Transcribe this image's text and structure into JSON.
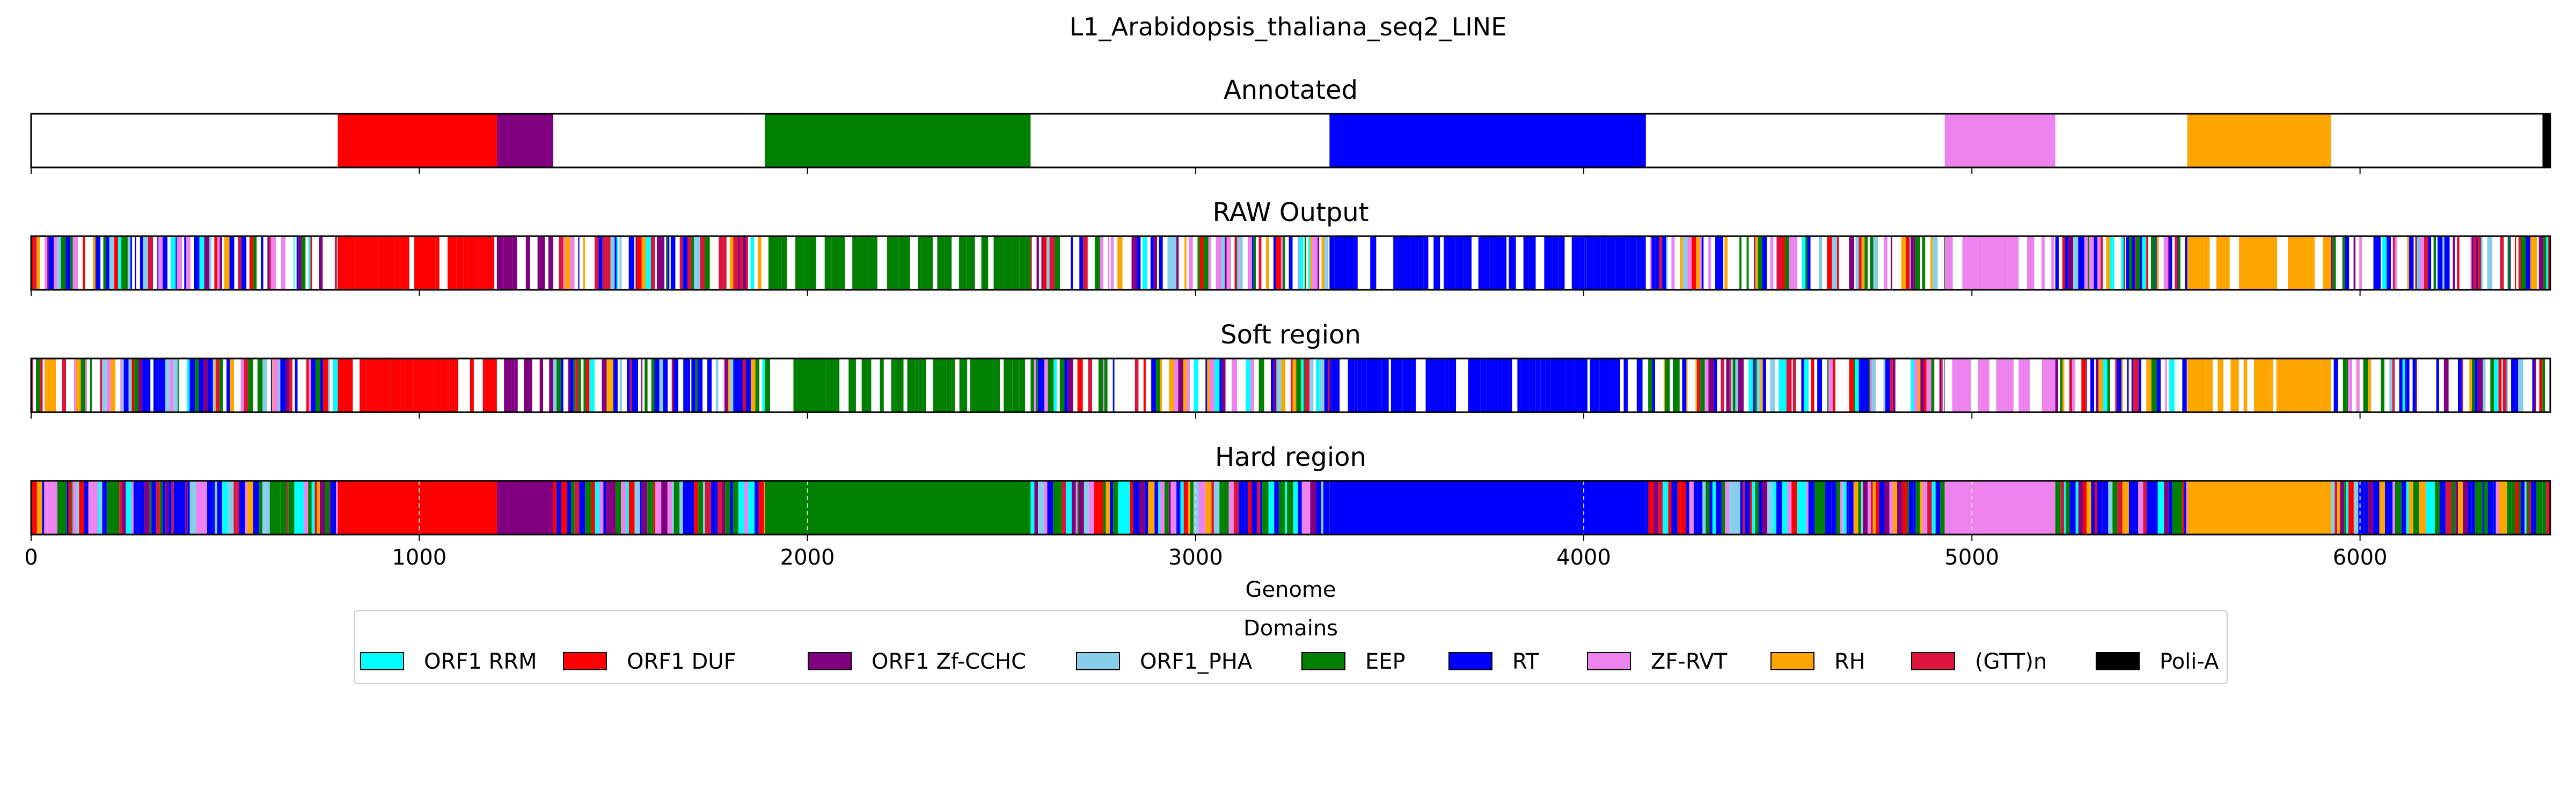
{
  "chart_data": {
    "type": "bar",
    "title": "L1_Arabidopsis_thaliana_seq2_LINE",
    "xlabel": "Genome",
    "ylabel": "",
    "xlim": [
      0,
      6490
    ],
    "xticks": [
      0,
      1000,
      2000,
      3000,
      4000,
      5000,
      6000
    ],
    "xtick_labels": [
      "0",
      "1000",
      "2000",
      "3000",
      "4000",
      "5000",
      "6000"
    ],
    "grid": "x-dashed",
    "legend_title": "Domains",
    "legend_position": "bottom-center",
    "domains": [
      {
        "name": "ORF1 RRM",
        "color": "#00ffff"
      },
      {
        "name": "ORF1 DUF",
        "color": "#ff0000"
      },
      {
        "name": "ORF1 Zf-CCHC",
        "color": "#800080"
      },
      {
        "name": "ORF1_PHA",
        "color": "#87ceeb"
      },
      {
        "name": "EEP",
        "color": "#008000"
      },
      {
        "name": "RT",
        "color": "#0000ff"
      },
      {
        "name": "ZF-RVT",
        "color": "#ee82ee"
      },
      {
        "name": "RH",
        "color": "#ffa500"
      },
      {
        "name": "(GTT)n",
        "color": "#dc143c"
      },
      {
        "name": "Poli-A",
        "color": "#000000"
      }
    ],
    "tracks": [
      {
        "name": "Annotated",
        "regions": [
          {
            "domain": "ORF1 DUF",
            "start": 790,
            "end": 1200
          },
          {
            "domain": "ORF1 Zf-CCHC",
            "start": 1200,
            "end": 1345
          },
          {
            "domain": "EEP",
            "start": 1890,
            "end": 2575
          },
          {
            "domain": "RT",
            "start": 3345,
            "end": 4160
          },
          {
            "domain": "ZF-RVT",
            "start": 4930,
            "end": 5215
          },
          {
            "domain": "RH",
            "start": 5555,
            "end": 5925
          },
          {
            "domain": "Poli-A",
            "start": 6470,
            "end": 6490
          }
        ]
      },
      {
        "name": "RAW Output",
        "regions": [
          {
            "domain": "mixed",
            "start": 0,
            "end": 790
          },
          {
            "domain": "ORF1 DUF",
            "start": 790,
            "end": 1200
          },
          {
            "domain": "ORF1 Zf-CCHC",
            "start": 1200,
            "end": 1345
          },
          {
            "domain": "mixed",
            "start": 1345,
            "end": 1890
          },
          {
            "domain": "EEP",
            "start": 1890,
            "end": 2575
          },
          {
            "domain": "mixed",
            "start": 2575,
            "end": 3345
          },
          {
            "domain": "RT",
            "start": 3345,
            "end": 4160
          },
          {
            "domain": "mixed",
            "start": 4160,
            "end": 4930
          },
          {
            "domain": "ZF-RVT",
            "start": 4930,
            "end": 5215
          },
          {
            "domain": "mixed",
            "start": 5215,
            "end": 5555
          },
          {
            "domain": "RH",
            "start": 5555,
            "end": 5925
          },
          {
            "domain": "mixed",
            "start": 5925,
            "end": 6490
          }
        ]
      },
      {
        "name": "Soft region",
        "regions": [
          {
            "domain": "mixed",
            "start": 0,
            "end": 790
          },
          {
            "domain": "ORF1 DUF",
            "start": 790,
            "end": 1200
          },
          {
            "domain": "ORF1 Zf-CCHC",
            "start": 1200,
            "end": 1345
          },
          {
            "domain": "mixed",
            "start": 1345,
            "end": 1890
          },
          {
            "domain": "EEP",
            "start": 1890,
            "end": 2575
          },
          {
            "domain": "mixed",
            "start": 2575,
            "end": 3345
          },
          {
            "domain": "RT",
            "start": 3345,
            "end": 4160
          },
          {
            "domain": "mixed",
            "start": 4160,
            "end": 4930
          },
          {
            "domain": "ZF-RVT",
            "start": 4930,
            "end": 5215
          },
          {
            "domain": "mixed",
            "start": 5215,
            "end": 5555
          },
          {
            "domain": "RH",
            "start": 5555,
            "end": 5925
          },
          {
            "domain": "mixed",
            "start": 5925,
            "end": 6490
          }
        ]
      },
      {
        "name": "Hard region",
        "regions": [
          {
            "domain": "mixed",
            "start": 0,
            "end": 790
          },
          {
            "domain": "ORF1 DUF",
            "start": 790,
            "end": 1200
          },
          {
            "domain": "ORF1 Zf-CCHC",
            "start": 1200,
            "end": 1345
          },
          {
            "domain": "mixed",
            "start": 1345,
            "end": 1890
          },
          {
            "domain": "EEP",
            "start": 1890,
            "end": 2575
          },
          {
            "domain": "mixed",
            "start": 2575,
            "end": 3345
          },
          {
            "domain": "RT",
            "start": 3345,
            "end": 4160
          },
          {
            "domain": "mixed",
            "start": 4160,
            "end": 4930
          },
          {
            "domain": "ZF-RVT",
            "start": 4930,
            "end": 5215
          },
          {
            "domain": "mixed",
            "start": 5215,
            "end": 5555
          },
          {
            "domain": "RH",
            "start": 5555,
            "end": 5925
          },
          {
            "domain": "mixed",
            "start": 5925,
            "end": 6490
          }
        ]
      }
    ]
  }
}
